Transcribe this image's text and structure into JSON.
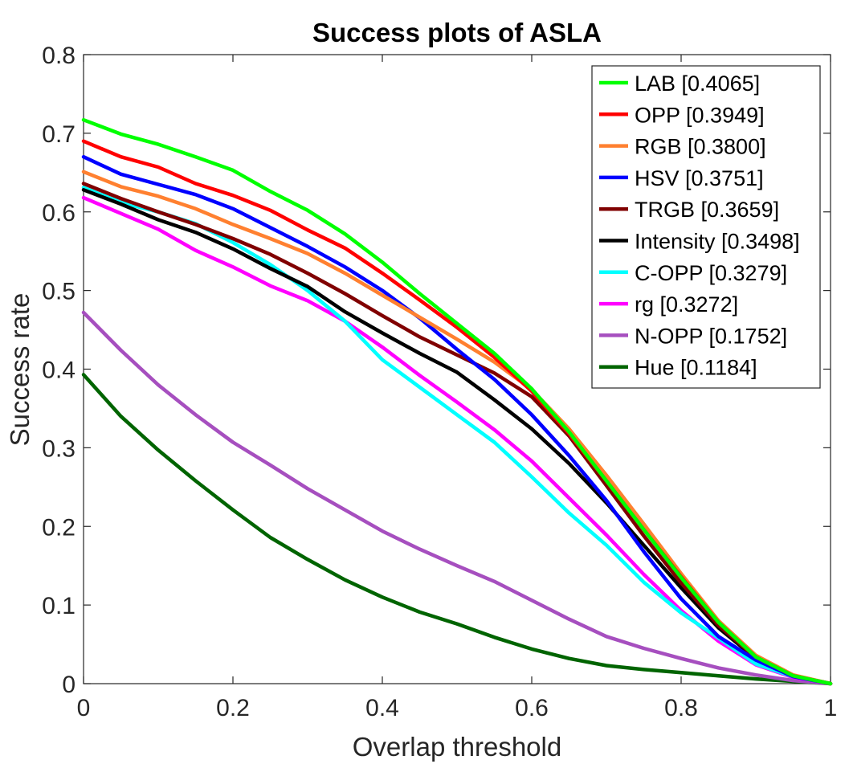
{
  "chart_data": {
    "type": "line",
    "title": "Success plots of ASLA",
    "xlabel": "Overlap threshold",
    "ylabel": "Success rate",
    "xlim": [
      0,
      1
    ],
    "ylim": [
      0,
      0.8
    ],
    "xticks": [
      "0",
      "0.2",
      "0.4",
      "0.6",
      "0.8",
      "1"
    ],
    "yticks": [
      "0",
      "0.1",
      "0.2",
      "0.3",
      "0.4",
      "0.5",
      "0.6",
      "0.7",
      "0.8"
    ],
    "grid": false,
    "legend_position": "top-right",
    "x": [
      0,
      0.05,
      0.1,
      0.15,
      0.2,
      0.25,
      0.3,
      0.35,
      0.4,
      0.45,
      0.5,
      0.55,
      0.6,
      0.65,
      0.7,
      0.75,
      0.8,
      0.85,
      0.9,
      0.95,
      1.0
    ],
    "series": [
      {
        "name": "LAB [0.4065]",
        "color": "#00ff00",
        "values": [
          0.717,
          0.699,
          0.686,
          0.67,
          0.653,
          0.626,
          0.602,
          0.572,
          0.536,
          0.496,
          0.458,
          0.42,
          0.375,
          0.32,
          0.258,
          0.196,
          0.135,
          0.078,
          0.034,
          0.01,
          0.0
        ]
      },
      {
        "name": "OPP [0.3949]",
        "color": "#ff0000",
        "values": [
          0.69,
          0.67,
          0.657,
          0.636,
          0.621,
          0.602,
          0.577,
          0.554,
          0.522,
          0.488,
          0.453,
          0.415,
          0.372,
          0.318,
          0.258,
          0.196,
          0.136,
          0.078,
          0.034,
          0.01,
          0.0
        ]
      },
      {
        "name": "RGB [0.3800]",
        "color": "#ff8030",
        "values": [
          0.651,
          0.632,
          0.62,
          0.604,
          0.584,
          0.566,
          0.547,
          0.522,
          0.494,
          0.466,
          0.438,
          0.409,
          0.374,
          0.324,
          0.265,
          0.203,
          0.14,
          0.08,
          0.036,
          0.011,
          0.0
        ]
      },
      {
        "name": "HSV [0.3751]",
        "color": "#0000ff",
        "values": [
          0.67,
          0.648,
          0.635,
          0.622,
          0.604,
          0.58,
          0.556,
          0.53,
          0.5,
          0.465,
          0.425,
          0.387,
          0.342,
          0.29,
          0.233,
          0.168,
          0.108,
          0.06,
          0.03,
          0.009,
          0.0
        ]
      },
      {
        "name": "TRGB [0.3659]",
        "color": "#800000",
        "values": [
          0.636,
          0.617,
          0.6,
          0.584,
          0.566,
          0.546,
          0.522,
          0.496,
          0.468,
          0.441,
          0.418,
          0.395,
          0.365,
          0.315,
          0.252,
          0.188,
          0.128,
          0.074,
          0.033,
          0.01,
          0.0
        ]
      },
      {
        "name": "Intensity [0.3498]",
        "color": "#000000",
        "values": [
          0.628,
          0.61,
          0.59,
          0.574,
          0.553,
          0.528,
          0.505,
          0.473,
          0.446,
          0.42,
          0.396,
          0.361,
          0.324,
          0.28,
          0.23,
          0.176,
          0.122,
          0.071,
          0.032,
          0.01,
          0.0
        ]
      },
      {
        "name": "C-OPP [0.3279]",
        "color": "#00ffff",
        "values": [
          0.631,
          0.612,
          0.6,
          0.585,
          0.561,
          0.533,
          0.5,
          0.461,
          0.412,
          0.377,
          0.342,
          0.307,
          0.263,
          0.217,
          0.176,
          0.129,
          0.09,
          0.058,
          0.025,
          0.009,
          0.0
        ]
      },
      {
        "name": "rg [0.3272]",
        "color": "#ff00ff",
        "values": [
          0.618,
          0.598,
          0.578,
          0.551,
          0.53,
          0.506,
          0.487,
          0.461,
          0.428,
          0.392,
          0.358,
          0.323,
          0.283,
          0.236,
          0.189,
          0.139,
          0.093,
          0.054,
          0.024,
          0.008,
          0.0
        ]
      },
      {
        "name": "N-OPP [0.1752]",
        "color": "#a64fbf",
        "values": [
          0.472,
          0.424,
          0.38,
          0.342,
          0.307,
          0.278,
          0.248,
          0.221,
          0.194,
          0.171,
          0.15,
          0.13,
          0.106,
          0.082,
          0.06,
          0.045,
          0.032,
          0.02,
          0.011,
          0.004,
          0.0
        ]
      },
      {
        "name": "Hue [0.1184]",
        "color": "#006400",
        "values": [
          0.393,
          0.34,
          0.297,
          0.258,
          0.221,
          0.186,
          0.158,
          0.132,
          0.11,
          0.091,
          0.076,
          0.059,
          0.044,
          0.032,
          0.023,
          0.018,
          0.014,
          0.01,
          0.006,
          0.003,
          0.0
        ]
      }
    ]
  }
}
